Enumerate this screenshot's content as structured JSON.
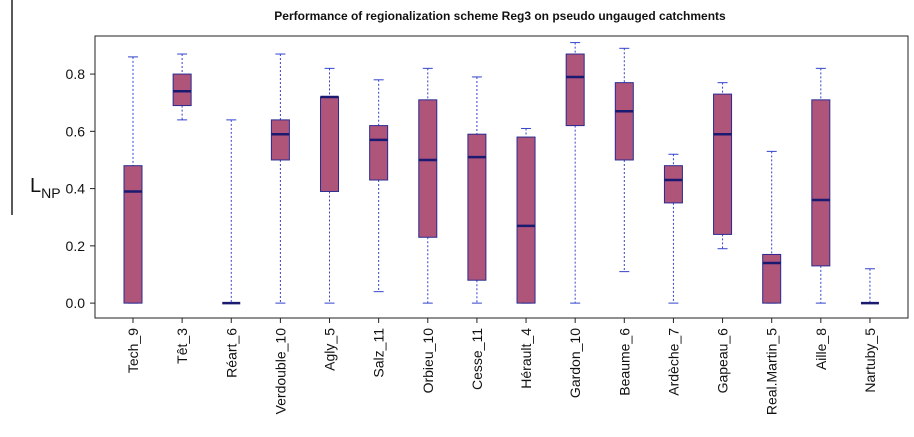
{
  "chart_data": {
    "type": "box",
    "title": "Performance of regionalization scheme Reg3 on pseudo ungauged catchments",
    "y_label": {
      "text": "L",
      "subscript": "NP"
    },
    "categories": [
      "Tech_9",
      "Têt_3",
      "Réart_6",
      "Verdouble_10",
      "Agly_5",
      "Salz_11",
      "Orbieu_10",
      "Cesse_11",
      "Hérault_4",
      "Gardon_10",
      "Beaume_6",
      "Ardèche_7",
      "Gapeau_6",
      "Real.Martin_5",
      "Aille_8",
      "Nartuby_5"
    ],
    "low": [
      0,
      0.64,
      0,
      0,
      0,
      0.04,
      0,
      0,
      0,
      0,
      0.11,
      0,
      0.19,
      0,
      0,
      0
    ],
    "q1": [
      0,
      0.69,
      0,
      0.5,
      0.39,
      0.43,
      0.23,
      0.08,
      0,
      0.62,
      0.5,
      0.35,
      0.24,
      0,
      0.13,
      0
    ],
    "median": [
      0.39,
      0.74,
      0,
      0.59,
      0.72,
      0.57,
      0.5,
      0.51,
      0.27,
      0.79,
      0.67,
      0.43,
      0.59,
      0.14,
      0.36,
      0
    ],
    "q3": [
      0.48,
      0.8,
      0,
      0.64,
      0.72,
      0.62,
      0.71,
      0.59,
      0.58,
      0.87,
      0.77,
      0.48,
      0.73,
      0.17,
      0.71,
      0
    ],
    "high": [
      0.86,
      0.87,
      0.64,
      0.87,
      0.82,
      0.78,
      0.82,
      0.79,
      0.61,
      0.91,
      0.89,
      0.52,
      0.77,
      0.53,
      0.82,
      0.12
    ],
    "color": "#b0557a",
    "ylim": [
      -0.052,
      0.933
    ],
    "yticks": [
      {
        "value": 0,
        "label": "0.0"
      },
      0.2,
      0.4,
      0.6,
      0.8
    ]
  }
}
